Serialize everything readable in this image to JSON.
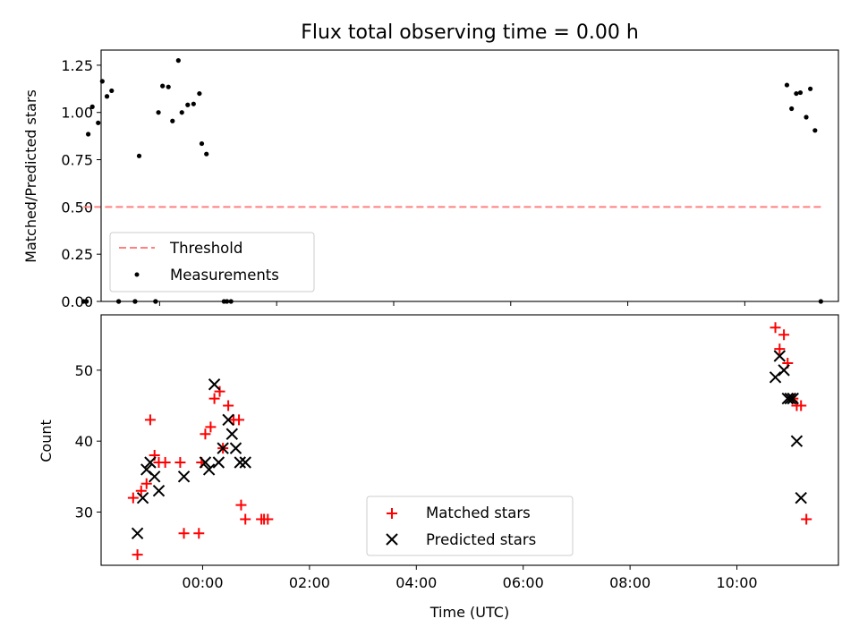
{
  "chart_data": [
    {
      "type": "scatter",
      "title": "Flux total observing time = 0.00 h",
      "xlabel": "",
      "ylabel": "Matched/Predicted stars",
      "xlim": [
        -1.0,
        11.6
      ],
      "ylim": [
        0.0,
        1.33
      ],
      "yticks": [
        0.0,
        0.25,
        0.5,
        0.75,
        1.0,
        1.25
      ],
      "ytick_labels": [
        "0.00",
        "0.25",
        "0.50",
        "0.75",
        "1.00",
        "1.25"
      ],
      "xticks": [
        0,
        2,
        4,
        6,
        8,
        10
      ],
      "legend_position": "lower-left",
      "threshold": {
        "name": "Threshold",
        "value": 0.5,
        "x_range": [
          -1.3,
          11.3
        ],
        "color": "#ff8080"
      },
      "series": [
        {
          "name": "Measurements",
          "color": "#000000",
          "x": [
            -1.3,
            -1.22,
            -1.15,
            -1.05,
            -0.98,
            -0.9,
            -0.82,
            -0.7,
            -0.42,
            -0.35,
            -0.07,
            -0.02,
            0.05,
            0.15,
            0.22,
            0.32,
            0.38,
            0.48,
            0.58,
            0.68,
            0.72,
            0.8,
            1.1,
            1.15,
            1.22,
            10.72,
            10.8,
            10.88,
            10.95,
            11.05,
            11.12,
            11.2,
            11.3,
            -1.25,
            -0.7,
            -0.42,
            -0.07
          ],
          "y": [
            0.0,
            0.885,
            1.03,
            0.945,
            1.165,
            1.085,
            1.115,
            0.0,
            0.0,
            0.77,
            0.0,
            1.0,
            1.14,
            1.135,
            0.955,
            1.275,
            1.0,
            1.04,
            1.045,
            1.1,
            0.835,
            0.78,
            0.0,
            0.0,
            0.0,
            1.145,
            1.02,
            1.1,
            1.105,
            0.975,
            1.125,
            0.905,
            0.0,
            0.0,
            0.0,
            0.0,
            0.0
          ]
        }
      ]
    },
    {
      "type": "scatter",
      "title": "",
      "xlabel": "Time (UTC)",
      "ylabel": "Count",
      "xlim": [
        -1.9,
        11.9
      ],
      "ylim": [
        22.5,
        57.8
      ],
      "yticks": [
        30,
        40,
        50
      ],
      "ytick_labels": [
        "30",
        "40",
        "50"
      ],
      "xticks": [
        0,
        2,
        4,
        6,
        8,
        10
      ],
      "xtick_labels": [
        "00:00",
        "02:00",
        "04:00",
        "06:00",
        "08:00",
        "10:00"
      ],
      "legend_position": "lower-center",
      "series": [
        {
          "name": "Matched stars",
          "marker": "+",
          "color": "#ff0000",
          "x": [
            -1.3,
            -1.22,
            -1.15,
            -1.05,
            -0.98,
            -0.9,
            -0.82,
            -0.7,
            -0.42,
            -0.35,
            -0.07,
            -0.02,
            0.05,
            0.15,
            0.22,
            0.32,
            0.38,
            0.48,
            0.58,
            0.68,
            0.72,
            0.8,
            1.1,
            1.15,
            1.22,
            10.72,
            10.8,
            10.88,
            10.95,
            11.05,
            11.12,
            11.2,
            11.3
          ],
          "y": [
            32,
            24,
            33,
            34,
            43,
            38,
            37,
            37,
            37,
            27,
            27,
            37,
            41,
            42,
            46,
            47,
            39,
            45,
            43,
            43,
            31,
            29,
            29,
            29,
            29,
            56,
            53,
            55,
            51,
            46,
            45,
            45,
            29
          ]
        },
        {
          "name": "Predicted stars",
          "marker": "x",
          "color": "#000000",
          "x": [
            -1.22,
            -1.12,
            -1.05,
            -0.98,
            -0.9,
            -0.82,
            -0.35,
            0.05,
            0.12,
            0.22,
            0.3,
            0.38,
            0.48,
            0.55,
            0.62,
            0.7,
            0.8,
            10.72,
            10.8,
            10.88,
            10.95,
            11.0,
            11.05,
            11.12,
            11.2
          ],
          "y": [
            27,
            32,
            36,
            37,
            35,
            33,
            35,
            37,
            36,
            48,
            37,
            39,
            43,
            41,
            39,
            37,
            37,
            49,
            52,
            50,
            46,
            46,
            46,
            40,
            32
          ]
        }
      ]
    }
  ]
}
